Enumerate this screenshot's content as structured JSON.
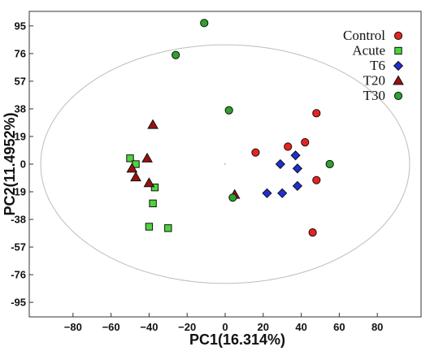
{
  "chart_data": {
    "type": "scatter",
    "xlabel": "PC1(16.314%)",
    "ylabel": "PC2(11.4952%)",
    "xlim": [
      -103,
      103
    ],
    "ylim": [
      -105,
      105
    ],
    "xticks": [
      -80,
      -60,
      -40,
      -20,
      0,
      20,
      40,
      60,
      80
    ],
    "yticks": [
      95,
      76,
      57,
      38,
      19,
      0,
      -19,
      -38,
      -57,
      -76,
      -95
    ],
    "grid": false,
    "legend_position": "top-right",
    "confidence_ellipse": {
      "cx": 0,
      "cy": 0,
      "rx": 97,
      "ry": 82,
      "color": "#bdbdbd"
    },
    "series": [
      {
        "name": "Control",
        "marker": "circle",
        "color": "#e8231f",
        "points": [
          [
            16,
            8
          ],
          [
            33,
            12
          ],
          [
            42,
            15
          ],
          [
            48,
            35
          ],
          [
            48,
            -11
          ],
          [
            46,
            -47
          ]
        ]
      },
      {
        "name": "Acute",
        "marker": "square",
        "color": "#4cd43a",
        "points": [
          [
            -50,
            4
          ],
          [
            -47,
            0
          ],
          [
            -37,
            -16
          ],
          [
            -38,
            -27
          ],
          [
            -40,
            -43
          ],
          [
            -30,
            -44
          ]
        ]
      },
      {
        "name": "T6",
        "marker": "diamond",
        "color": "#1f2fd6",
        "points": [
          [
            37,
            6
          ],
          [
            29,
            0
          ],
          [
            38,
            -3
          ],
          [
            22,
            -20
          ],
          [
            30,
            -20
          ],
          [
            38,
            -15
          ]
        ]
      },
      {
        "name": "T20",
        "marker": "triangle",
        "color": "#9b1010",
        "points": [
          [
            -38,
            27
          ],
          [
            -41,
            4
          ],
          [
            -49,
            -3
          ],
          [
            -47,
            -9
          ],
          [
            -40,
            -13
          ],
          [
            5,
            -21
          ]
        ]
      },
      {
        "name": "T30",
        "marker": "circle",
        "color": "#2ea12e",
        "points": [
          [
            -11,
            97
          ],
          [
            -26,
            75
          ],
          [
            2,
            37
          ],
          [
            55,
            0
          ],
          [
            4,
            -23
          ]
        ]
      }
    ]
  }
}
